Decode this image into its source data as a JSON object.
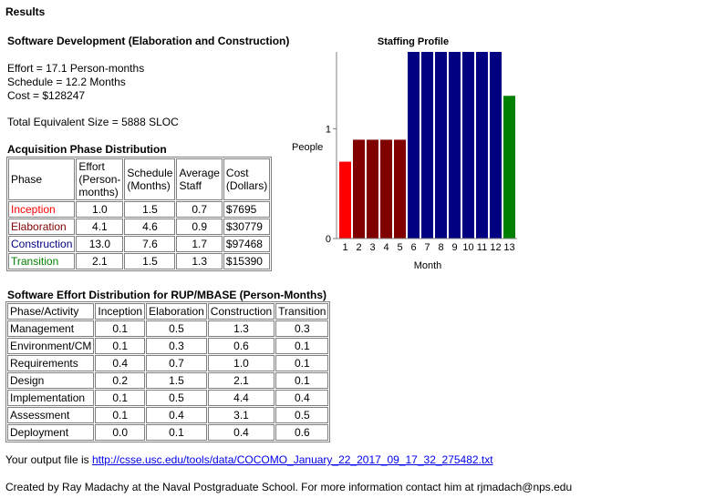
{
  "heading": "Results",
  "section_title": "Software Development (Elaboration and Construction)",
  "summary": {
    "effort": "Effort = 17.1 Person-months",
    "schedule": "Schedule = 12.2 Months",
    "cost": "Cost = $128247",
    "size": "Total Equivalent Size = 5888 SLOC"
  },
  "phase_table": {
    "title": "Acquisition Phase Distribution",
    "headers": [
      "Phase",
      "Effort (Person-months)",
      "Schedule (Months)",
      "Average Staff",
      "Cost (Dollars)"
    ],
    "header_lines": [
      [
        "Phase"
      ],
      [
        "Effort",
        "(Person-",
        "months)"
      ],
      [
        "Schedule",
        "(Months)"
      ],
      [
        "Average",
        "Staff"
      ],
      [
        "Cost",
        "(Dollars)"
      ]
    ],
    "rows": [
      {
        "phase": "Inception",
        "color": "#ff0000",
        "effort": "1.0",
        "schedule": "1.5",
        "staff": "0.7",
        "cost": "$7695"
      },
      {
        "phase": "Elaboration",
        "color": "#800000",
        "effort": "4.1",
        "schedule": "4.6",
        "staff": "0.9",
        "cost": "$30779"
      },
      {
        "phase": "Construction",
        "color": "#000080",
        "effort": "13.0",
        "schedule": "7.6",
        "staff": "1.7",
        "cost": "$97468"
      },
      {
        "phase": "Transition",
        "color": "#008000",
        "effort": "2.1",
        "schedule": "1.5",
        "staff": "1.3",
        "cost": "$15390"
      }
    ]
  },
  "effort_table": {
    "title": "Software Effort Distribution for RUP/MBASE (Person-Months)",
    "headers": [
      "Phase/Activity",
      "Inception",
      "Elaboration",
      "Construction",
      "Transition"
    ],
    "rows": [
      [
        "Management",
        "0.1",
        "0.5",
        "1.3",
        "0.3"
      ],
      [
        "Environment/CM",
        "0.1",
        "0.3",
        "0.6",
        "0.1"
      ],
      [
        "Requirements",
        "0.4",
        "0.7",
        "1.0",
        "0.1"
      ],
      [
        "Design",
        "0.2",
        "1.5",
        "2.1",
        "0.1"
      ],
      [
        "Implementation",
        "0.1",
        "0.5",
        "4.4",
        "0.4"
      ],
      [
        "Assessment",
        "0.1",
        "0.4",
        "3.1",
        "0.5"
      ],
      [
        "Deployment",
        "0.0",
        "0.1",
        "0.4",
        "0.6"
      ]
    ]
  },
  "output": {
    "prefix": "Your output file is ",
    "link": "http://csse.usc.edu/tools/data/COCOMO_January_22_2017_09_17_32_275482.txt"
  },
  "footer": "Created by Ray Madachy at the Naval Postgraduate School. For more information contact him at rjmadach@nps.edu",
  "chart_data": {
    "type": "bar",
    "title": "Staffing Profile",
    "xlabel": "Month",
    "ylabel": "People",
    "categories": [
      "1",
      "2",
      "3",
      "4",
      "5",
      "6",
      "7",
      "8",
      "9",
      "10",
      "11",
      "12",
      "13"
    ],
    "values": [
      0.7,
      0.9,
      0.9,
      0.9,
      0.9,
      1.7,
      1.7,
      1.7,
      1.7,
      1.7,
      1.7,
      1.7,
      1.3
    ],
    "colors": [
      "#ff0000",
      "#800000",
      "#800000",
      "#800000",
      "#800000",
      "#000080",
      "#000080",
      "#000080",
      "#000080",
      "#000080",
      "#000080",
      "#000080",
      "#008000"
    ],
    "yticks": [
      0,
      1
    ],
    "ylim": [
      0,
      1.7
    ],
    "grid": false
  }
}
